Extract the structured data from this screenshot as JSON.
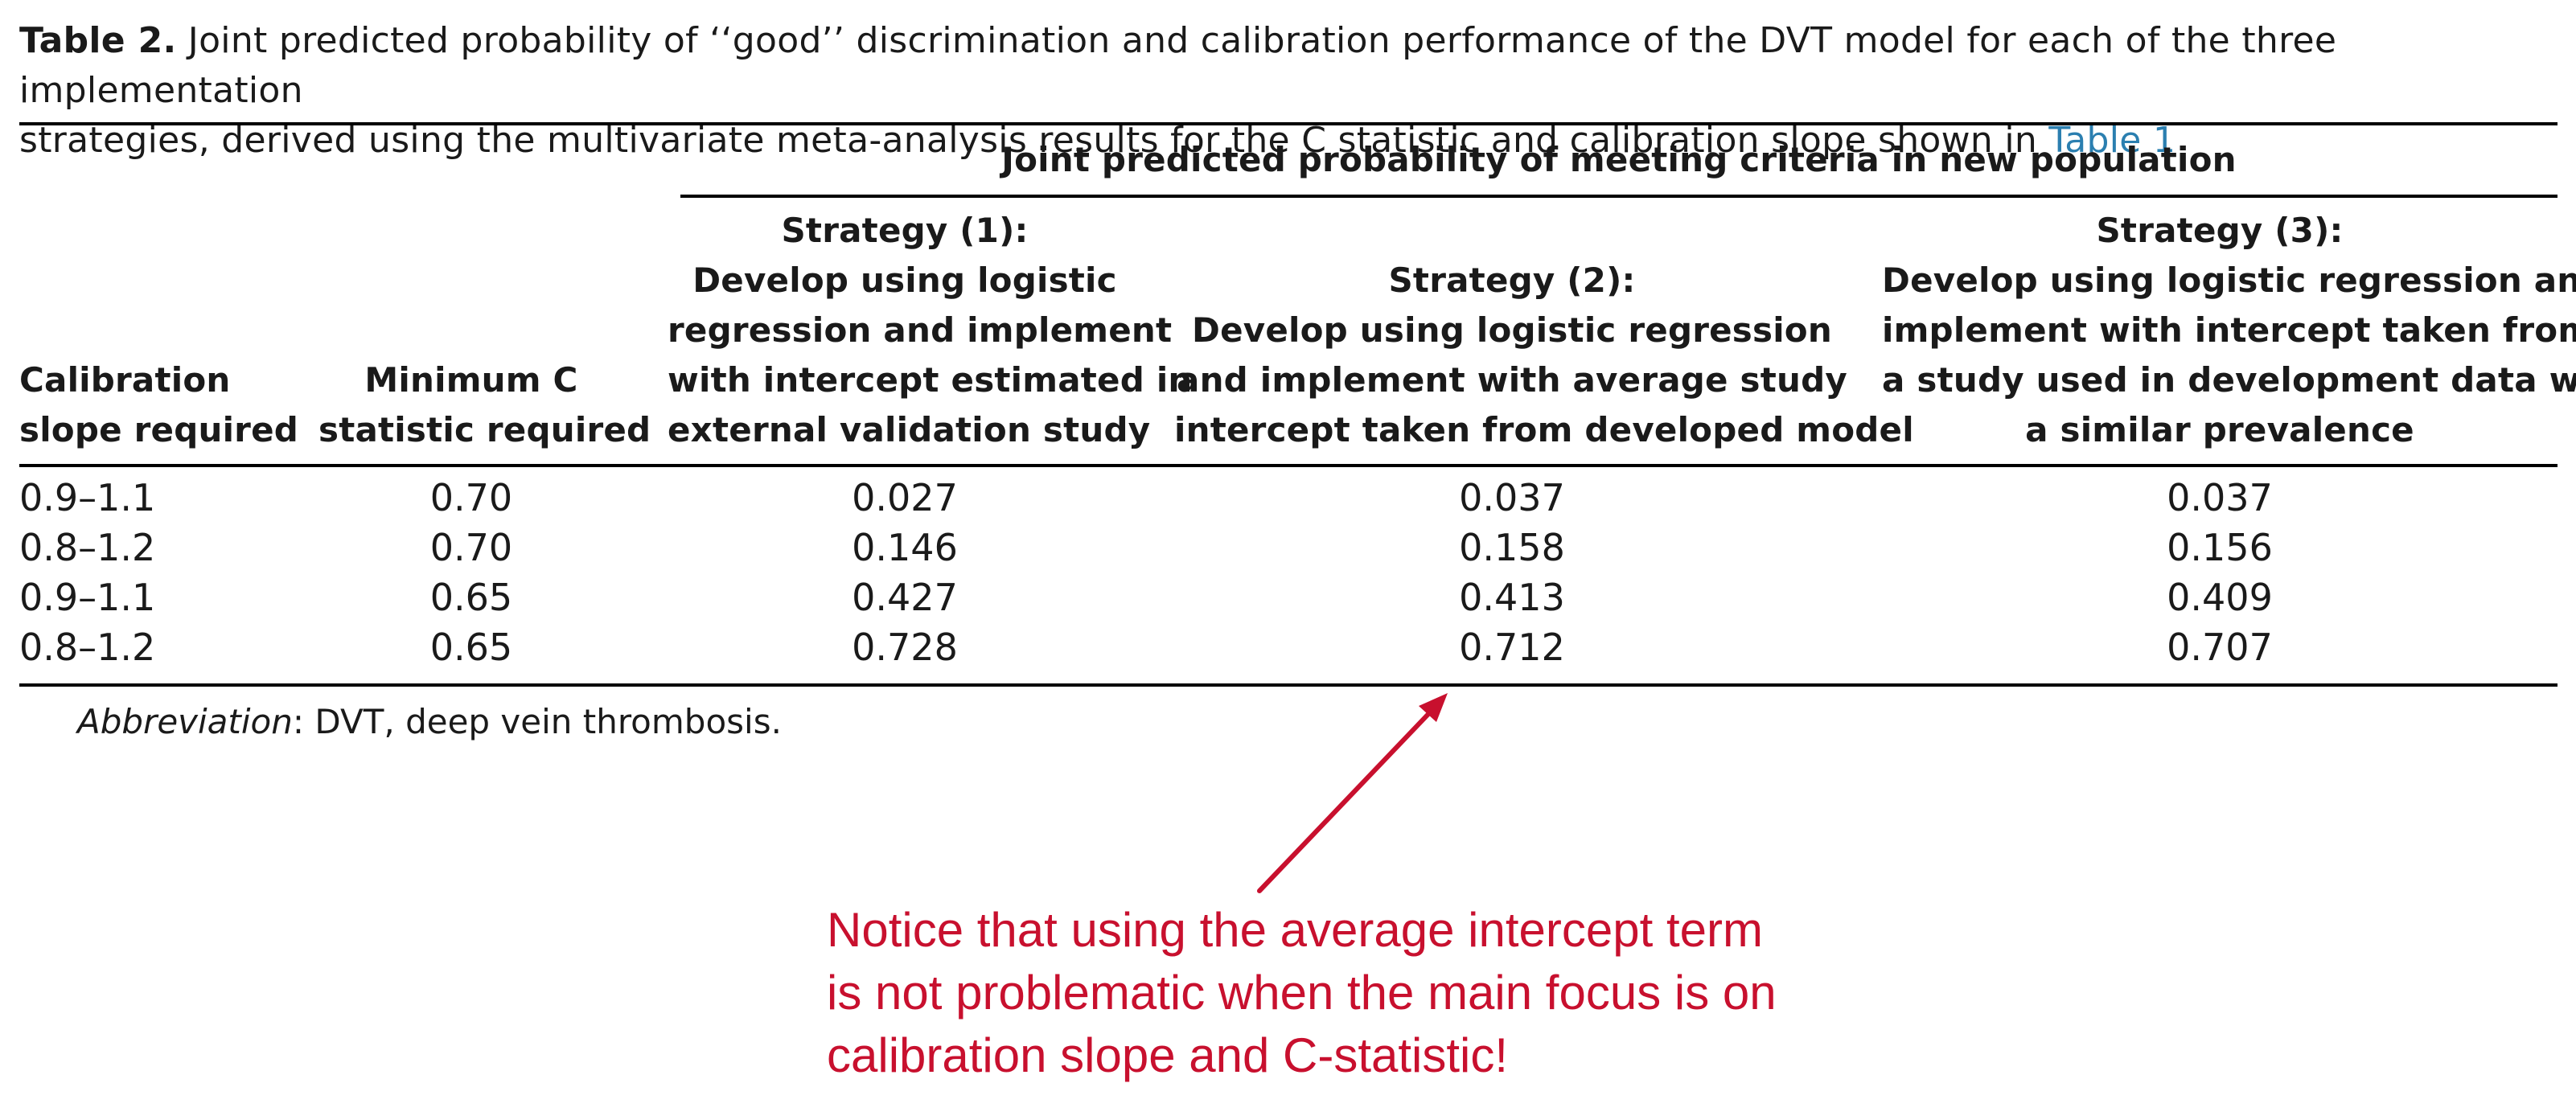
{
  "caption": {
    "label": "Table 2.",
    "line1_rest": " Joint predicted probability of ‘‘good’’ discrimination and calibration performance of the DVT model for each of the three implementation",
    "line2": "strategies, derived using the multivariate meta-analysis results for the C statistic and calibration slope shown in ",
    "table_ref": "Table 1"
  },
  "table": {
    "group_header": "Joint predicted probability of meeting criteria in new population",
    "columns": {
      "calibration": [
        "Calibration",
        "slope required"
      ],
      "c_statistic": [
        "Minimum C",
        "statistic required"
      ],
      "strategy1": [
        "Strategy (1):",
        "Develop using logistic",
        "regression and implement",
        "with intercept estimated in",
        "external validation study"
      ],
      "strategy2": [
        "Strategy (2):",
        "Develop using logistic regression",
        "and implement with average study",
        "intercept taken from developed model"
      ],
      "strategy3": [
        "Strategy (3):",
        "Develop using logistic regression and",
        "implement with intercept taken from",
        "a study used in development data with",
        "a similar prevalence"
      ]
    },
    "rows": [
      {
        "slope": "0.9–1.1",
        "c": "0.70",
        "s1": "0.027",
        "s2": "0.037",
        "s3": "0.037"
      },
      {
        "slope": "0.8–1.2",
        "c": "0.70",
        "s1": "0.146",
        "s2": "0.158",
        "s3": "0.156"
      },
      {
        "slope": "0.9–1.1",
        "c": "0.65",
        "s1": "0.427",
        "s2": "0.413",
        "s3": "0.409"
      },
      {
        "slope": "0.8–1.2",
        "c": "0.65",
        "s1": "0.728",
        "s2": "0.712",
        "s3": "0.707"
      }
    ]
  },
  "footnote": {
    "label": "Abbreviation",
    "text": ": DVT, deep vein thrombosis."
  },
  "annotation": {
    "lines": [
      "Notice that using the average intercept term",
      "is not problematic when the main focus is on",
      "calibration slope and C-statistic!"
    ],
    "color": "#c8102e"
  }
}
